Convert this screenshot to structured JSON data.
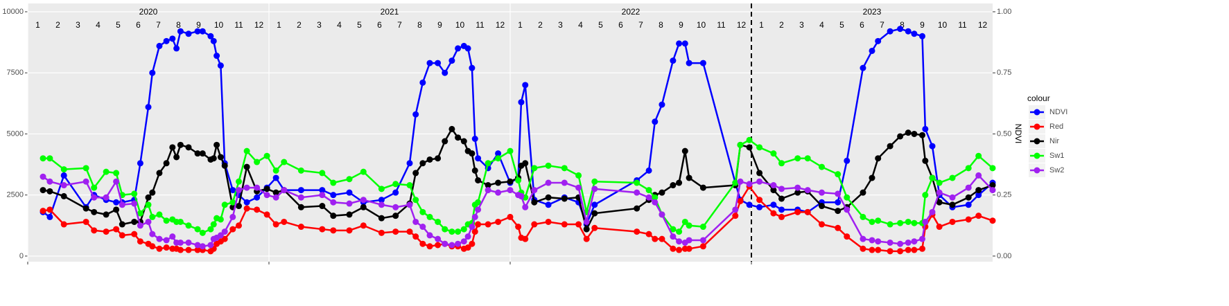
{
  "chart_data": {
    "type": "line",
    "y2label": "NDVI",
    "legend_title": "colour",
    "legend": "right",
    "grid": true,
    "years": [
      "2020",
      "2021",
      "2022",
      "2023"
    ],
    "months": [
      1,
      2,
      3,
      4,
      5,
      6,
      7,
      8,
      9,
      10,
      11,
      12
    ],
    "vline": 36,
    "xlim": [
      0,
      48
    ],
    "xticks": [
      0,
      12,
      24,
      36
    ],
    "ylim": [
      -230,
      10340
    ],
    "yticks": [
      0,
      2500,
      5000,
      7500,
      10000
    ],
    "y2lim": [
      -0.023,
      1.034
    ],
    "y2ticks": [
      {
        "value": 0,
        "label": "0.00"
      },
      {
        "value": 0.25,
        "label": "0.25"
      },
      {
        "value": 0.5,
        "label": "0.50"
      },
      {
        "value": 0.75,
        "label": "0.75"
      },
      {
        "value": 1,
        "label": "1.00"
      }
    ],
    "x": [
      0.76,
      1.1,
      1.8,
      2.9,
      3.3,
      3.9,
      4.4,
      4.7,
      5.3,
      5.6,
      6.0,
      6.2,
      6.55,
      6.9,
      7.2,
      7.4,
      7.6,
      8.0,
      8.45,
      8.7,
      9.1,
      9.25,
      9.4,
      9.6,
      9.8,
      10.2,
      10.5,
      10.9,
      11.4,
      11.9,
      12.35,
      12.75,
      13.6,
      14.65,
      15.2,
      16.0,
      16.7,
      17.6,
      18.3,
      19.0,
      19.3,
      19.65,
      20.0,
      20.4,
      20.75,
      21.1,
      21.4,
      21.7,
      21.9,
      22.1,
      22.25,
      22.4,
      22.9,
      23.4,
      24.0,
      24.4,
      24.55,
      24.75,
      25.2,
      25.9,
      26.7,
      27.4,
      27.8,
      28.2,
      30.3,
      30.9,
      31.2,
      31.55,
      32.1,
      32.4,
      32.7,
      32.9,
      33.6,
      35.2,
      35.45,
      35.9,
      36.4,
      37.1,
      37.5,
      38.3,
      38.8,
      39.5,
      40.3,
      40.75,
      41.55,
      42.0,
      42.3,
      42.9,
      43.4,
      43.8,
      44.1,
      44.5,
      44.65,
      45.0,
      45.35,
      46.0,
      46.8,
      47.3,
      48.0
    ],
    "series": [
      {
        "name": "NDVI",
        "color": "#0000ff",
        "axis": "y2",
        "values": [
          0.18,
          0.16,
          0.33,
          0.2,
          0.25,
          0.23,
          0.22,
          0.22,
          0.23,
          0.38,
          0.61,
          0.75,
          0.86,
          0.88,
          0.89,
          0.85,
          0.92,
          0.91,
          0.92,
          0.92,
          0.9,
          0.88,
          0.82,
          0.78,
          0.38,
          0.27,
          0.25,
          0.22,
          0.24,
          0.28,
          0.32,
          0.27,
          0.27,
          0.27,
          0.25,
          0.26,
          0.22,
          0.23,
          0.26,
          0.38,
          0.58,
          0.71,
          0.79,
          0.79,
          0.75,
          0.8,
          0.85,
          0.86,
          0.85,
          0.77,
          0.48,
          0.4,
          0.36,
          0.42,
          0.3,
          0.32,
          0.63,
          0.7,
          0.23,
          0.21,
          0.24,
          0.22,
          0.13,
          0.21,
          0.31,
          0.35,
          0.55,
          0.62,
          0.8,
          0.87,
          0.87,
          0.79,
          0.79,
          0.3,
          0.23,
          0.21,
          0.2,
          0.21,
          0.19,
          0.19,
          0.18,
          0.22,
          0.22,
          0.39,
          0.77,
          0.84,
          0.88,
          0.92,
          0.93,
          0.92,
          0.91,
          0.9,
          0.52,
          0.45,
          0.25,
          0.2,
          0.21,
          0.25,
          0.3
        ]
      },
      {
        "name": "Red",
        "color": "#ff0000",
        "values": [
          1850,
          1900,
          1300,
          1400,
          1050,
          1000,
          1100,
          850,
          900,
          600,
          500,
          400,
          300,
          350,
          300,
          300,
          250,
          250,
          250,
          250,
          200,
          300,
          500,
          600,
          700,
          1100,
          1250,
          1950,
          1900,
          1700,
          1300,
          1400,
          1200,
          1100,
          1050,
          1050,
          1250,
          950,
          1000,
          1000,
          800,
          500,
          400,
          450,
          500,
          400,
          400,
          300,
          350,
          500,
          1000,
          1300,
          1300,
          1400,
          1600,
          1200,
          750,
          700,
          1300,
          1400,
          1300,
          1300,
          700,
          1150,
          1000,
          900,
          700,
          700,
          300,
          250,
          300,
          300,
          400,
          1650,
          2250,
          2850,
          2300,
          1750,
          1600,
          1800,
          1800,
          1300,
          1150,
          800,
          300,
          250,
          250,
          200,
          200,
          250,
          250,
          300,
          1200,
          1700,
          1200,
          1400,
          1500,
          1650,
          1450
        ]
      },
      {
        "name": "Nir",
        "color": "#000000",
        "values": [
          2700,
          2650,
          2450,
          1950,
          1800,
          1700,
          1900,
          1300,
          1400,
          1400,
          2400,
          2600,
          3400,
          3800,
          4450,
          4050,
          4550,
          4450,
          4200,
          4200,
          3950,
          4000,
          4550,
          4050,
          3700,
          2000,
          2050,
          3650,
          2650,
          2750,
          2600,
          2700,
          2000,
          2050,
          1650,
          1700,
          2000,
          1550,
          1650,
          2150,
          3400,
          3800,
          3950,
          4000,
          4700,
          5200,
          4850,
          4700,
          4300,
          4200,
          3500,
          3100,
          2900,
          3000,
          3050,
          3200,
          3700,
          3800,
          2200,
          2400,
          2350,
          2400,
          1100,
          1750,
          1950,
          2300,
          2500,
          2600,
          2900,
          3000,
          4300,
          3200,
          2800,
          2900,
          4550,
          4450,
          3400,
          2700,
          2350,
          2600,
          2650,
          2050,
          1850,
          2000,
          2600,
          3200,
          4000,
          4500,
          4900,
          5050,
          5000,
          4950,
          3900,
          3200,
          2200,
          2100,
          2400,
          2700,
          2900
        ]
      },
      {
        "name": "Sw1",
        "color": "#00ff00",
        "values": [
          4000,
          4000,
          3550,
          3600,
          2800,
          3450,
          3400,
          2500,
          2550,
          1750,
          2100,
          1600,
          1700,
          1450,
          1500,
          1400,
          1400,
          1250,
          1100,
          950,
          1100,
          1300,
          1550,
          1500,
          2100,
          2200,
          3050,
          4300,
          3850,
          4100,
          3500,
          3850,
          3500,
          3400,
          3000,
          3150,
          3450,
          2750,
          2950,
          2900,
          2300,
          1800,
          1600,
          1400,
          1100,
          1000,
          1000,
          1100,
          1300,
          1350,
          2100,
          2200,
          3800,
          4000,
          4300,
          3100,
          2600,
          2400,
          3600,
          3700,
          3600,
          3300,
          1800,
          3050,
          3000,
          2700,
          2400,
          1700,
          1100,
          1000,
          1400,
          1250,
          1200,
          3000,
          4550,
          4750,
          4450,
          4200,
          3800,
          4000,
          4000,
          3650,
          3350,
          2400,
          1600,
          1400,
          1450,
          1300,
          1350,
          1400,
          1350,
          1350,
          2500,
          3200,
          3000,
          3200,
          3600,
          4100,
          3600
        ]
      },
      {
        "name": "Sw2",
        "color": "#a020f0",
        "values": [
          3250,
          3050,
          2900,
          3050,
          2400,
          2400,
          3050,
          2100,
          2150,
          1250,
          1400,
          900,
          700,
          650,
          800,
          550,
          550,
          550,
          450,
          400,
          450,
          700,
          750,
          850,
          1000,
          1600,
          2700,
          2800,
          2800,
          2500,
          2400,
          2700,
          2400,
          2500,
          2200,
          2150,
          2300,
          2100,
          2000,
          2100,
          1400,
          1200,
          850,
          700,
          500,
          450,
          500,
          600,
          800,
          1200,
          1600,
          1900,
          2700,
          2600,
          2700,
          2500,
          2450,
          2000,
          2700,
          3000,
          3000,
          2800,
          1400,
          2750,
          2600,
          2400,
          2200,
          1700,
          800,
          600,
          550,
          650,
          650,
          1900,
          3050,
          2950,
          3050,
          2900,
          2750,
          2800,
          2700,
          2600,
          2550,
          1900,
          700,
          650,
          600,
          550,
          500,
          550,
          600,
          700,
          1400,
          1800,
          2600,
          2400,
          2800,
          3300,
          2700
        ]
      }
    ]
  }
}
